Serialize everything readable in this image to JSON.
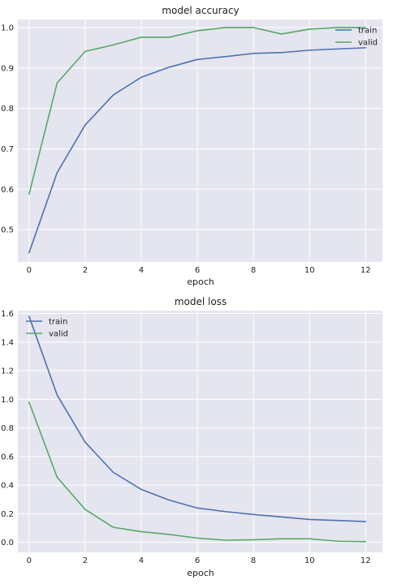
{
  "chart_data": [
    {
      "type": "line",
      "title": "model accuracy",
      "xlabel": "epoch",
      "ylabel": "",
      "x": [
        0,
        1,
        2,
        3,
        4,
        5,
        6,
        7,
        8,
        9,
        10,
        11,
        12
      ],
      "xlim": [
        -0.4,
        12.6
      ],
      "ylim": [
        0.42,
        1.02
      ],
      "xticks": [
        0,
        2,
        4,
        6,
        8,
        10,
        12
      ],
      "yticks": [
        0.5,
        0.6,
        0.7,
        0.8,
        0.9,
        1.0
      ],
      "ytick_labels": [
        "0.5",
        "0.6",
        "0.7",
        "0.8",
        "0.9",
        "1.0"
      ],
      "grid": true,
      "legend": "top-right",
      "series": [
        {
          "name": "train",
          "color": "#4c72b0",
          "values": [
            0.443,
            0.641,
            0.759,
            0.833,
            0.877,
            0.902,
            0.921,
            0.928,
            0.936,
            0.938,
            0.944,
            0.947,
            0.95
          ]
        },
        {
          "name": "valid",
          "color": "#55a868",
          "values": [
            0.588,
            0.863,
            0.941,
            0.957,
            0.976,
            0.976,
            0.992,
            1.0,
            1.0,
            0.984,
            0.996,
            1.0,
            1.0
          ]
        }
      ]
    },
    {
      "type": "line",
      "title": "model loss",
      "xlabel": "epoch",
      "ylabel": "",
      "x": [
        0,
        1,
        2,
        3,
        4,
        5,
        6,
        7,
        8,
        9,
        10,
        11,
        12
      ],
      "xlim": [
        -0.4,
        12.6
      ],
      "ylim": [
        -0.07,
        1.62
      ],
      "xticks": [
        0,
        2,
        4,
        6,
        8,
        10,
        12
      ],
      "yticks": [
        0.0,
        0.2,
        0.4,
        0.6,
        0.8,
        1.0,
        1.2,
        1.4,
        1.6
      ],
      "ytick_labels": [
        "0.0",
        "0.2",
        "0.4",
        "0.6",
        "0.8",
        "1.0",
        "1.2",
        "1.4",
        "1.6"
      ],
      "grid": true,
      "legend": "top-left",
      "series": [
        {
          "name": "train",
          "color": "#4c72b0",
          "values": [
            1.58,
            1.03,
            0.7,
            0.49,
            0.37,
            0.295,
            0.24,
            0.215,
            0.195,
            0.178,
            0.16,
            0.153,
            0.145
          ]
        },
        {
          "name": "valid",
          "color": "#55a868",
          "values": [
            0.98,
            0.455,
            0.23,
            0.105,
            0.075,
            0.055,
            0.03,
            0.015,
            0.018,
            0.025,
            0.025,
            0.008,
            0.005
          ]
        }
      ]
    }
  ]
}
